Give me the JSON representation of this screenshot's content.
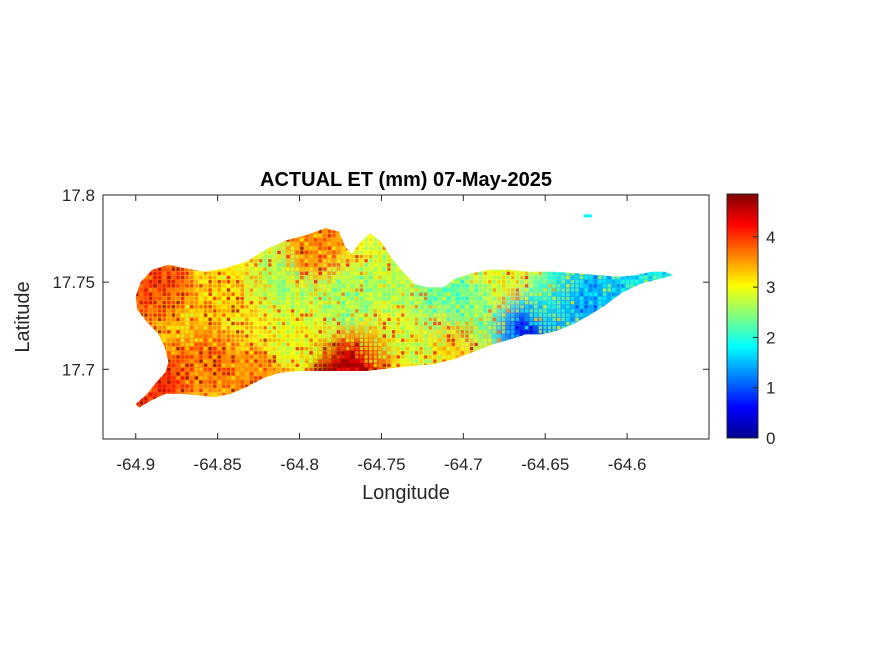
{
  "chart_data": {
    "type": "heatmap",
    "title": "ACTUAL ET (mm) 07-May-2025",
    "xlabel": "Longitude",
    "ylabel": "Latitude",
    "xlim": [
      -64.92,
      -64.55
    ],
    "ylim": [
      17.66,
      17.8
    ],
    "xticks": [
      -64.9,
      -64.85,
      -64.8,
      -64.75,
      -64.7,
      -64.65,
      -64.6
    ],
    "xtick_labels": [
      "-64.9",
      "-64.85",
      "-64.8",
      "-64.75",
      "-64.7",
      "-64.65",
      "-64.6"
    ],
    "yticks": [
      17.7,
      17.75,
      17.8
    ],
    "ytick_labels": [
      "17.7",
      "17.75",
      "17.8"
    ],
    "colorbar": {
      "range": [
        0,
        4.85
      ],
      "ticks": [
        0,
        1,
        2,
        3,
        4
      ],
      "tick_labels": [
        "0",
        "1",
        "2",
        "3",
        "4"
      ],
      "colormap": "jet",
      "colors": [
        "#00008f",
        "#0000ff",
        "#0080ff",
        "#00ffff",
        "#80ff80",
        "#ffff00",
        "#ff8000",
        "#ff0000",
        "#800000"
      ]
    },
    "grid": false,
    "regions": [
      {
        "lon": -64.885,
        "lat": 17.745,
        "et": 4.0
      },
      {
        "lon": -64.87,
        "lat": 17.725,
        "et": 3.3
      },
      {
        "lon": -64.86,
        "lat": 17.705,
        "et": 3.7
      },
      {
        "lon": -64.89,
        "lat": 17.69,
        "et": 4.1
      },
      {
        "lon": -64.84,
        "lat": 17.745,
        "et": 3.2
      },
      {
        "lon": -64.83,
        "lat": 17.695,
        "et": 3.6
      },
      {
        "lon": -64.81,
        "lat": 17.75,
        "et": 2.6
      },
      {
        "lon": -64.8,
        "lat": 17.72,
        "et": 2.9
      },
      {
        "lon": -64.79,
        "lat": 17.77,
        "et": 3.6
      },
      {
        "lon": -64.77,
        "lat": 17.74,
        "et": 2.5
      },
      {
        "lon": -64.76,
        "lat": 17.71,
        "et": 2.9
      },
      {
        "lon": -64.765,
        "lat": 17.704,
        "et": 4.3
      },
      {
        "lon": -64.774,
        "lat": 17.696,
        "et": 4.6
      },
      {
        "lon": -64.74,
        "lat": 17.755,
        "et": 2.7
      },
      {
        "lon": -64.725,
        "lat": 17.72,
        "et": 2.8
      },
      {
        "lon": -64.71,
        "lat": 17.74,
        "et": 2.2
      },
      {
        "lon": -64.7,
        "lat": 17.715,
        "et": 3.3
      },
      {
        "lon": -64.685,
        "lat": 17.73,
        "et": 2.4
      },
      {
        "lon": -64.67,
        "lat": 17.75,
        "et": 2.9
      },
      {
        "lon": -64.655,
        "lat": 17.728,
        "et": 2.0
      },
      {
        "lon": -64.66,
        "lat": 17.722,
        "et": 0.7
      },
      {
        "lon": -64.64,
        "lat": 17.745,
        "et": 2.1
      },
      {
        "lon": -64.625,
        "lat": 17.738,
        "et": 1.3
      },
      {
        "lon": -64.61,
        "lat": 17.745,
        "et": 1.5
      },
      {
        "lon": -64.585,
        "lat": 17.752,
        "et": 1.7
      },
      {
        "lon": -64.624,
        "lat": 17.788,
        "et": 1.8
      }
    ]
  }
}
